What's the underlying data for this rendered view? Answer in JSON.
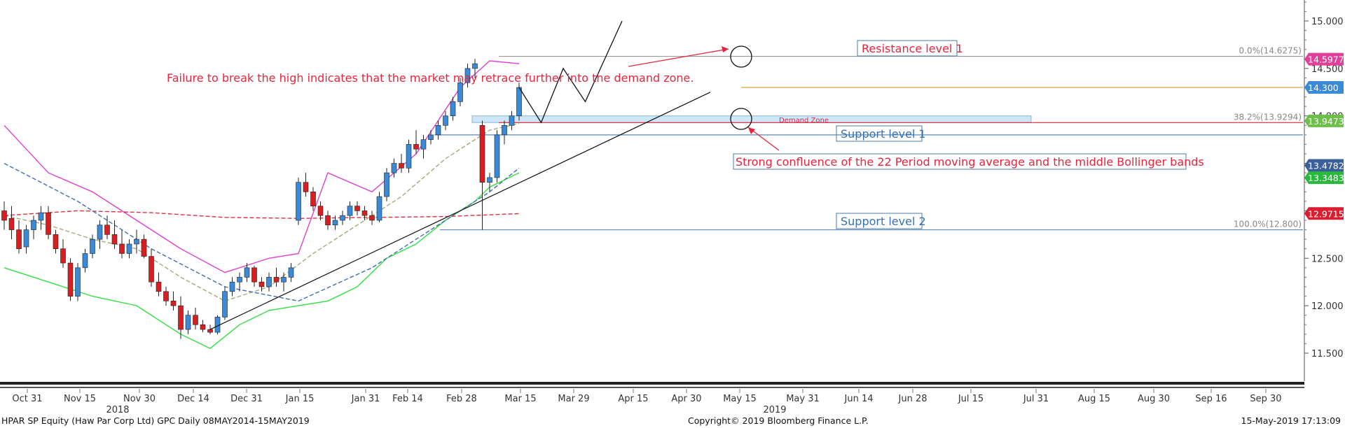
{
  "chart_data": {
    "type": "candlestick",
    "y_ticks": [
      "15.000",
      "14.500",
      "14.000",
      "13.500",
      "13.000",
      "12.500",
      "12.000",
      "11.500"
    ],
    "ylim": [
      11.15,
      15.2
    ],
    "x_tick_labels": [
      "Oct 31",
      "Nov 15",
      "Nov 30",
      "Dec 14",
      "Dec 31",
      "Jan 15",
      "Jan 31",
      "Feb 14",
      "Feb 28",
      "Mar 15",
      "Mar 29",
      "Apr 15",
      "Apr 30",
      "May 15",
      "May 31",
      "Jun 14",
      "Jun 28",
      "Jul 15",
      "Jul 31",
      "Aug 15",
      "Aug 30",
      "Sep 16",
      "Sep 30"
    ],
    "year_labels": [
      "2018",
      "2019"
    ],
    "price_labels": [
      {
        "text": "14.5977",
        "value": 14.5977,
        "color": "#e0409a"
      },
      {
        "text": "14.300",
        "value": 14.3,
        "color": "#3a8ad8"
      },
      {
        "text": "13.9473",
        "value": 13.9473,
        "color": "#6cc04a"
      },
      {
        "text": "13.4782",
        "value": 13.4782,
        "color": "#3a5f9a"
      },
      {
        "text": "13.3483",
        "value": 13.3483,
        "color": "#28b83c"
      },
      {
        "text": "12.9715",
        "value": 12.9715,
        "color": "#d81e30"
      }
    ],
    "fib_labels": [
      {
        "text": "0.0%(14.6275)",
        "value": 14.6275
      },
      {
        "text": "38.2%(13.9294)",
        "value": 13.9294
      },
      {
        "text": "100.0%(12.800)",
        "value": 12.8
      }
    ],
    "horizontal_levels": [
      {
        "value": 14.6275,
        "color": "#9a9a9a"
      },
      {
        "value": 14.3,
        "color": "#e0a040"
      },
      {
        "value": 13.9294,
        "color": "#e8243c"
      },
      {
        "value": 13.8,
        "color": "#5a8ab8"
      },
      {
        "value": 12.8,
        "color": "#5a8ab8"
      }
    ],
    "demand_zone": {
      "label": "Demand Zone",
      "top": 14.0,
      "bottom": 13.93
    },
    "annotations": {
      "failure_text": "Failure to break the high indicates that the market may retrace further into the demand zone.",
      "resistance": "Resistance level 1",
      "support1": "Support level 1",
      "support2": "Support level 2",
      "confluence": "Strong confluence of the 22 Period moving average and the middle Bollinger bands"
    },
    "candles": [
      [
        0,
        13.0,
        13.1,
        12.8,
        12.9
      ],
      [
        1,
        12.92,
        13.05,
        12.7,
        12.8
      ],
      [
        2,
        12.8,
        12.9,
        12.55,
        12.6
      ],
      [
        3,
        12.62,
        12.85,
        12.55,
        12.8
      ],
      [
        4,
        12.8,
        12.95,
        12.7,
        12.9
      ],
      [
        5,
        12.9,
        13.05,
        12.8,
        12.98
      ],
      [
        6,
        12.98,
        13.05,
        12.7,
        12.75
      ],
      [
        7,
        12.75,
        12.8,
        12.55,
        12.6
      ],
      [
        8,
        12.6,
        12.7,
        12.4,
        12.45
      ],
      [
        9,
        12.45,
        12.5,
        12.05,
        12.1
      ],
      [
        10,
        12.1,
        12.45,
        12.05,
        12.4
      ],
      [
        11,
        12.4,
        12.6,
        12.35,
        12.55
      ],
      [
        12,
        12.55,
        12.75,
        12.5,
        12.7
      ],
      [
        13,
        12.7,
        12.9,
        12.6,
        12.85
      ],
      [
        14,
        12.85,
        12.95,
        12.7,
        12.75
      ],
      [
        15,
        12.75,
        12.9,
        12.6,
        12.65
      ],
      [
        16,
        12.65,
        12.8,
        12.5,
        12.55
      ],
      [
        17,
        12.55,
        12.7,
        12.5,
        12.65
      ],
      [
        18,
        12.65,
        12.8,
        12.55,
        12.7
      ],
      [
        19,
        12.7,
        12.75,
        12.5,
        12.52
      ],
      [
        20,
        12.52,
        12.6,
        12.2,
        12.25
      ],
      [
        21,
        12.25,
        12.35,
        12.1,
        12.15
      ],
      [
        22,
        12.15,
        12.2,
        12.0,
        12.05
      ],
      [
        23,
        12.05,
        12.15,
        11.95,
        12.0
      ],
      [
        24,
        12.0,
        12.1,
        11.65,
        11.75
      ],
      [
        25,
        11.75,
        11.95,
        11.7,
        11.9
      ],
      [
        26,
        11.9,
        11.98,
        11.75,
        11.8
      ],
      [
        27,
        11.8,
        11.85,
        11.72,
        11.75
      ],
      [
        28,
        11.75,
        11.8,
        11.7,
        11.72
      ],
      [
        29,
        11.72,
        11.9,
        11.7,
        11.88
      ],
      [
        30,
        11.88,
        12.2,
        11.85,
        12.15
      ],
      [
        31,
        12.15,
        12.3,
        12.1,
        12.25
      ],
      [
        32,
        12.25,
        12.35,
        12.15,
        12.3
      ],
      [
        33,
        12.3,
        12.45,
        12.25,
        12.4
      ],
      [
        34,
        12.4,
        12.42,
        12.2,
        12.25
      ],
      [
        35,
        12.25,
        12.3,
        12.15,
        12.2
      ],
      [
        36,
        12.2,
        12.35,
        12.15,
        12.3
      ],
      [
        37,
        12.3,
        12.4,
        12.2,
        12.25
      ],
      [
        38,
        12.25,
        12.35,
        12.15,
        12.3
      ],
      [
        39,
        12.3,
        12.45,
        12.25,
        12.4
      ],
      [
        40,
        12.9,
        13.35,
        12.85,
        13.3
      ],
      [
        41,
        13.3,
        13.4,
        13.15,
        13.2
      ],
      [
        42,
        13.2,
        13.25,
        13.0,
        13.05
      ],
      [
        43,
        13.05,
        13.1,
        12.9,
        12.95
      ],
      [
        44,
        12.95,
        13.0,
        12.8,
        12.85
      ],
      [
        45,
        12.85,
        12.95,
        12.8,
        12.9
      ],
      [
        46,
        12.9,
        13.0,
        12.85,
        12.95
      ],
      [
        47,
        12.95,
        13.1,
        12.9,
        13.05
      ],
      [
        48,
        13.05,
        13.1,
        12.95,
        13.0
      ],
      [
        49,
        13.0,
        13.05,
        12.9,
        12.95
      ],
      [
        50,
        12.95,
        13.0,
        12.85,
        12.9
      ],
      [
        51,
        12.9,
        13.2,
        12.88,
        13.15
      ],
      [
        52,
        13.15,
        13.45,
        13.1,
        13.4
      ],
      [
        53,
        13.4,
        13.55,
        13.35,
        13.5
      ],
      [
        54,
        13.5,
        13.6,
        13.4,
        13.45
      ],
      [
        55,
        13.45,
        13.75,
        13.4,
        13.7
      ],
      [
        56,
        13.7,
        13.85,
        13.6,
        13.65
      ],
      [
        57,
        13.65,
        13.8,
        13.55,
        13.75
      ],
      [
        58,
        13.75,
        13.85,
        13.7,
        13.8
      ],
      [
        59,
        13.8,
        13.95,
        13.75,
        13.9
      ],
      [
        60,
        13.9,
        14.05,
        13.85,
        14.0
      ],
      [
        61,
        14.0,
        14.2,
        13.95,
        14.15
      ],
      [
        62,
        14.15,
        14.4,
        14.1,
        14.35
      ],
      [
        63,
        14.35,
        14.55,
        14.3,
        14.5
      ],
      [
        64,
        14.5,
        14.6,
        14.4,
        14.55
      ],
      [
        65,
        13.9,
        13.95,
        12.8,
        13.3
      ],
      [
        66,
        13.3,
        13.4,
        13.2,
        13.35
      ],
      [
        67,
        13.35,
        13.85,
        13.3,
        13.8
      ],
      [
        68,
        13.8,
        13.95,
        13.7,
        13.9
      ],
      [
        69,
        13.9,
        14.05,
        13.85,
        14.0
      ],
      [
        70,
        14.0,
        14.35,
        13.95,
        14.3
      ]
    ],
    "ma22": [
      [
        0,
        12.95
      ],
      [
        6,
        12.85
      ],
      [
        12,
        12.7
      ],
      [
        18,
        12.6
      ],
      [
        24,
        12.3
      ],
      [
        30,
        12.05
      ],
      [
        36,
        12.2
      ],
      [
        42,
        12.55
      ],
      [
        48,
        12.85
      ],
      [
        54,
        13.15
      ],
      [
        60,
        13.55
      ],
      [
        66,
        13.85
      ],
      [
        70,
        13.92
      ]
    ],
    "boll_upper": [
      [
        0,
        13.9
      ],
      [
        6,
        13.4
      ],
      [
        12,
        13.2
      ],
      [
        18,
        12.9
      ],
      [
        24,
        12.6
      ],
      [
        30,
        12.35
      ],
      [
        36,
        12.5
      ],
      [
        40,
        12.55
      ],
      [
        44,
        13.4
      ],
      [
        50,
        13.2
      ],
      [
        56,
        13.6
      ],
      [
        62,
        14.3
      ],
      [
        66,
        14.58
      ],
      [
        70,
        14.55
      ]
    ],
    "boll_lower": [
      [
        0,
        12.4
      ],
      [
        6,
        12.25
      ],
      [
        12,
        12.1
      ],
      [
        18,
        12.0
      ],
      [
        24,
        11.7
      ],
      [
        28,
        11.55
      ],
      [
        32,
        11.8
      ],
      [
        36,
        11.95
      ],
      [
        40,
        12.0
      ],
      [
        44,
        12.05
      ],
      [
        48,
        12.2
      ],
      [
        52,
        12.5
      ],
      [
        56,
        12.65
      ],
      [
        60,
        12.9
      ],
      [
        64,
        13.1
      ],
      [
        66,
        13.25
      ],
      [
        70,
        13.4
      ]
    ],
    "sma_red": [
      [
        0,
        12.95
      ],
      [
        10,
        13.0
      ],
      [
        20,
        12.98
      ],
      [
        30,
        12.93
      ],
      [
        40,
        12.92
      ],
      [
        50,
        12.93
      ],
      [
        60,
        12.94
      ],
      [
        70,
        12.97
      ]
    ],
    "sma_blue": [
      [
        0,
        13.5
      ],
      [
        10,
        13.1
      ],
      [
        20,
        12.6
      ],
      [
        30,
        12.2
      ],
      [
        40,
        12.05
      ],
      [
        50,
        12.4
      ],
      [
        60,
        12.9
      ],
      [
        66,
        13.2
      ],
      [
        70,
        13.45
      ]
    ],
    "trendline": {
      "from": [
        28,
        11.75
      ],
      "to": [
        96,
        14.25
      ]
    },
    "projection": [
      [
        70,
        14.3
      ],
      [
        73,
        13.93
      ],
      [
        76,
        14.5
      ],
      [
        79,
        14.15
      ],
      [
        84,
        15.0
      ]
    ]
  },
  "footer": {
    "left": "HPAR SP Equity (Haw Par Corp Ltd) GPC  Daily 08MAY2014-15MAY2019",
    "center": "Copyright© 2019 Bloomberg Finance L.P.",
    "right": "15-May-2019 17:13:09"
  }
}
